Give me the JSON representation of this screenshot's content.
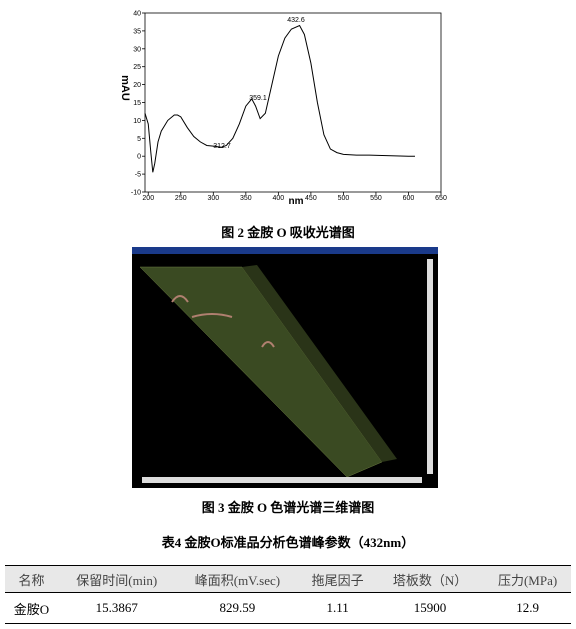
{
  "chart_data": {
    "type": "line",
    "x_label": "nm",
    "y_label": "mAU",
    "annotations": [
      "432.6",
      "359.1",
      "312.7"
    ],
    "x": [
      195,
      200,
      204,
      207,
      210,
      215,
      220,
      230,
      240,
      245,
      250,
      260,
      270,
      280,
      290,
      300,
      312.7,
      320,
      330,
      340,
      350,
      359.1,
      365,
      372,
      380,
      390,
      400,
      410,
      420,
      432.6,
      440,
      450,
      460,
      470,
      480,
      490,
      500,
      520,
      540,
      560,
      580,
      600,
      610
    ],
    "series": [
      {
        "name": "spectrum",
        "color": "#000000",
        "values": [
          12,
          9,
          1,
          -4.5,
          -2,
          4,
          7,
          10,
          11.5,
          11.5,
          11,
          8,
          5.5,
          4,
          3,
          2.8,
          2.5,
          3,
          5,
          9,
          14,
          16,
          14,
          10.5,
          12,
          20,
          28,
          33,
          35.5,
          36.5,
          34,
          26,
          15,
          6,
          2,
          1,
          0.5,
          0.3,
          0.3,
          0.2,
          0.1,
          0,
          0
        ]
      }
    ],
    "xlim": [
      195,
      650
    ],
    "ylim": [
      -10,
      40
    ],
    "xticks": [
      200,
      250,
      300,
      350,
      400,
      450,
      500,
      550,
      600,
      650
    ],
    "yticks": [
      -10,
      -5,
      0,
      5,
      10,
      15,
      20,
      25,
      30,
      35,
      40
    ]
  },
  "figure2_caption": "图 2  金胺 O 吸收光谱图",
  "figure3_caption": "图 3  金胺 O 色谱光谱三维谱图",
  "table": {
    "title": "表4  金胺O标准品分析色谱峰参数（432nm）",
    "header": [
      "名称",
      "保留时间(min)",
      "峰面积(mV.sec)",
      "拖尾因子",
      "塔板数（N）",
      "压力(MPa)"
    ],
    "rows": [
      [
        "金胺O",
        "15.3867",
        "829.59",
        "1.11",
        "15900",
        "12.9"
      ]
    ]
  }
}
